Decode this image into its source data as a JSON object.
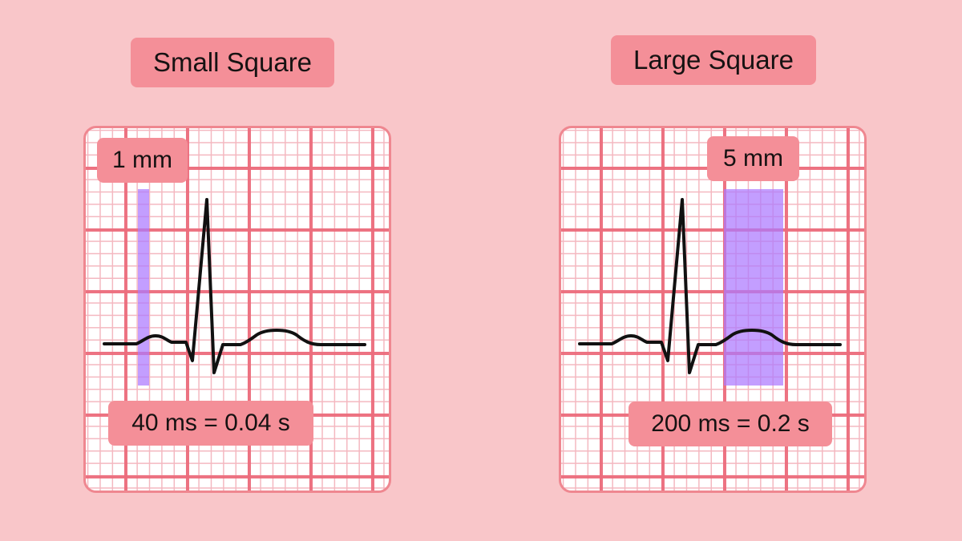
{
  "left_panel": {
    "title": "Small Square",
    "measure_label": "1 mm",
    "duration_label": "40 ms = 0.04 s"
  },
  "right_panel": {
    "title": "Large Square",
    "measure_label": "5 mm",
    "duration_label": "200 ms = 0.2 s"
  },
  "colors": {
    "background": "#f9c6c9",
    "pill": "#f48f98",
    "grid_major": "#ec6c7c",
    "grid_minor": "#f4b8c0",
    "highlight": "#ac78ff",
    "ecg_trace": "#111111"
  }
}
